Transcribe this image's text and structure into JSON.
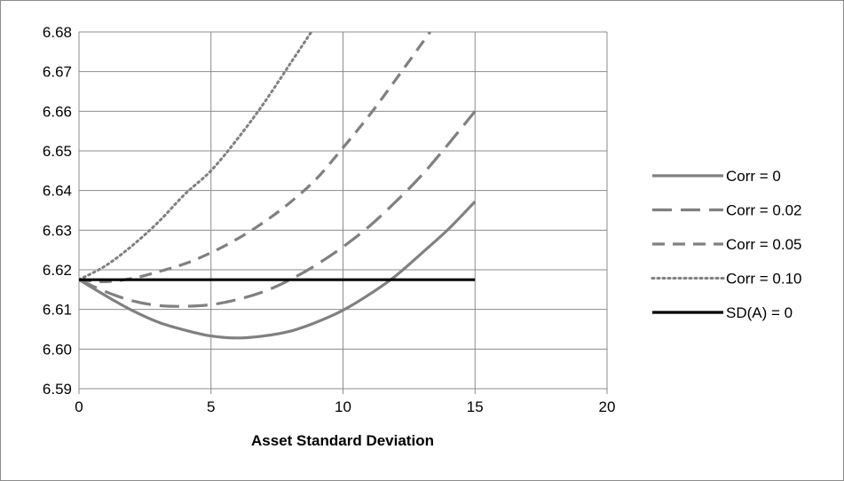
{
  "chart_data": {
    "type": "line",
    "title": "",
    "xlabel": "Asset Standard Deviation",
    "ylabel": "",
    "xlim": [
      0,
      20
    ],
    "ylim": [
      6.59,
      6.68
    ],
    "x_ticks": [
      "0",
      "5",
      "10",
      "15",
      "20"
    ],
    "y_ticks": [
      "6.59",
      "6.60",
      "6.61",
      "6.62",
      "6.63",
      "6.64",
      "6.65",
      "6.66",
      "6.67",
      "6.68"
    ],
    "grid": true,
    "legend_position": "right",
    "series": [
      {
        "name": "Corr = 0",
        "color": "#808080",
        "style": "solid",
        "x": [
          0,
          1,
          2,
          3,
          4,
          5,
          6,
          7,
          8,
          9,
          10,
          11,
          12,
          13,
          14,
          15
        ],
        "y": [
          6.6175,
          6.6135,
          6.6098,
          6.6068,
          6.6048,
          6.6033,
          6.6028,
          6.6033,
          6.6045,
          6.6068,
          6.6098,
          6.6138,
          6.6185,
          6.6243,
          6.6303,
          6.6372
        ]
      },
      {
        "name": "Corr = 0.02",
        "color": "#808080",
        "style": "longdash",
        "x": [
          0,
          1,
          2,
          3,
          4,
          5,
          6,
          7,
          8,
          9,
          10,
          11,
          12,
          13,
          14,
          15
        ],
        "y": [
          6.6175,
          6.6145,
          6.6122,
          6.611,
          6.6108,
          6.6112,
          6.6125,
          6.6145,
          6.6175,
          6.6213,
          6.6258,
          6.631,
          6.6372,
          6.644,
          6.6518,
          6.66
        ]
      },
      {
        "name": "Corr = 0.05",
        "color": "#808080",
        "style": "dash",
        "x": [
          0,
          1,
          2,
          3,
          4,
          5,
          6,
          7,
          8,
          9,
          10,
          11,
          12,
          13.3
        ],
        "y": [
          6.6175,
          6.617,
          6.6178,
          6.6195,
          6.6215,
          6.6243,
          6.6278,
          6.632,
          6.637,
          6.643,
          6.6508,
          6.659,
          6.668,
          6.68
        ]
      },
      {
        "name": "Corr = 0.10",
        "color": "#808080",
        "style": "dot",
        "x": [
          0,
          1,
          2,
          3,
          4,
          5,
          6,
          7,
          8,
          8.8
        ],
        "y": [
          6.6175,
          6.621,
          6.626,
          6.632,
          6.639,
          6.645,
          6.653,
          6.662,
          6.672,
          6.68
        ]
      },
      {
        "name": "SD(A) = 0",
        "color": "#000000",
        "style": "solid",
        "x": [
          0,
          15
        ],
        "y": [
          6.6175,
          6.6175
        ]
      }
    ]
  }
}
